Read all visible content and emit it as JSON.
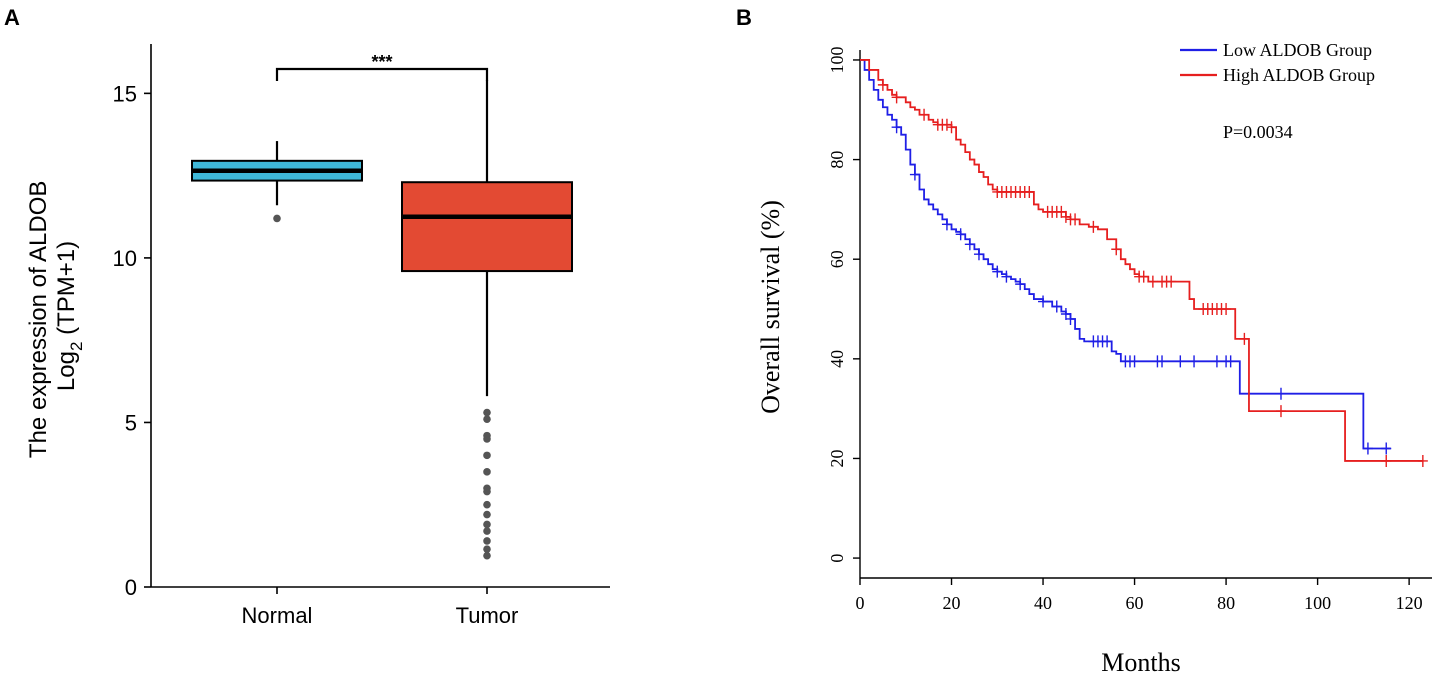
{
  "chart_data": [
    {
      "panel": "A",
      "type": "box",
      "ylabel_line1": "The expression of ALDOB",
      "ylabel_line2_prefix": "Log",
      "ylabel_line2_sub": "2",
      "ylabel_line2_suffix": " (TPM+1)",
      "ylim": [
        0,
        16.5
      ],
      "yticks": [
        0,
        5,
        10,
        15
      ],
      "categories": [
        "Normal",
        "Tumor"
      ],
      "significance": "***",
      "boxes": [
        {
          "name": "Normal",
          "color": "#3fb8d8",
          "whisker_low": 11.6,
          "q1": 12.35,
          "median": 12.65,
          "q3": 12.95,
          "whisker_high": 13.55,
          "outliers": [
            11.2
          ]
        },
        {
          "name": "Tumor",
          "color": "#e34a33",
          "whisker_low": 5.8,
          "q1": 9.6,
          "median": 11.25,
          "q3": 12.3,
          "whisker_high": 15.4,
          "outliers": [
            5.3,
            5.1,
            4.6,
            4.5,
            4.0,
            3.5,
            3.0,
            2.9,
            2.5,
            2.2,
            1.9,
            1.7,
            1.4,
            1.15,
            0.95
          ]
        }
      ]
    },
    {
      "panel": "B",
      "type": "line",
      "subtype": "kaplan-meier",
      "xlabel": "Months",
      "ylabel": "Overall survival (%)",
      "xlim": [
        0,
        125
      ],
      "ylim": [
        -4,
        102
      ],
      "xticks": [
        0,
        20,
        40,
        60,
        80,
        100,
        120
      ],
      "yticks": [
        0,
        20,
        40,
        60,
        80,
        100
      ],
      "legend_position": "top-right",
      "pvalue": "P=0.0034",
      "series": [
        {
          "name": "Low ALDOB Group",
          "color": "#1f1fe6",
          "steps": [
            [
              0,
              100
            ],
            [
              1,
              98
            ],
            [
              2,
              96
            ],
            [
              3,
              94
            ],
            [
              4,
              92
            ],
            [
              5,
              90.5
            ],
            [
              6,
              89
            ],
            [
              7,
              88
            ],
            [
              8,
              86.5
            ],
            [
              9,
              85
            ],
            [
              10,
              82
            ],
            [
              11,
              79
            ],
            [
              12,
              77
            ],
            [
              13,
              74
            ],
            [
              14,
              72
            ],
            [
              15,
              71
            ],
            [
              16,
              70
            ],
            [
              17,
              69
            ],
            [
              18,
              68
            ],
            [
              19,
              67
            ],
            [
              20,
              66
            ],
            [
              21,
              65.5
            ],
            [
              22,
              65
            ],
            [
              23,
              64
            ],
            [
              24,
              63
            ],
            [
              25,
              62
            ],
            [
              26,
              61
            ],
            [
              27,
              60
            ],
            [
              28,
              59
            ],
            [
              29,
              58
            ],
            [
              30,
              57.5
            ],
            [
              31,
              57
            ],
            [
              32,
              56.5
            ],
            [
              33,
              56
            ],
            [
              34,
              55.5
            ],
            [
              35,
              55
            ],
            [
              36,
              54
            ],
            [
              37,
              53
            ],
            [
              38,
              52
            ],
            [
              40,
              51.5
            ],
            [
              42,
              50.5
            ],
            [
              44,
              49.5
            ],
            [
              45,
              49
            ],
            [
              46,
              48
            ],
            [
              47,
              46
            ],
            [
              48,
              44
            ],
            [
              49,
              43.5
            ],
            [
              55,
              41.5
            ],
            [
              56,
              41
            ],
            [
              57,
              39.5
            ],
            [
              82,
              39.5
            ],
            [
              83,
              33
            ],
            [
              109,
              33
            ],
            [
              110,
              22
            ],
            [
              116,
              22
            ]
          ],
          "censor_x": [
            8,
            12,
            19,
            22,
            24,
            26,
            30,
            32,
            35,
            40,
            43,
            45,
            46,
            51,
            52,
            53,
            54,
            58,
            59,
            60,
            65,
            66,
            70,
            73,
            78,
            80,
            81,
            92,
            111,
            115
          ]
        },
        {
          "name": "High ALDOB Group",
          "color": "#e61f1f",
          "steps": [
            [
              0,
              100
            ],
            [
              2,
              98
            ],
            [
              4,
              96
            ],
            [
              5,
              95
            ],
            [
              6,
              94
            ],
            [
              7,
              93
            ],
            [
              8,
              92.5
            ],
            [
              10,
              91.5
            ],
            [
              11,
              90.5
            ],
            [
              12,
              90
            ],
            [
              13,
              89
            ],
            [
              15,
              88
            ],
            [
              16,
              87.5
            ],
            [
              17,
              87
            ],
            [
              20,
              86.5
            ],
            [
              21,
              84
            ],
            [
              22,
              83
            ],
            [
              23,
              81.5
            ],
            [
              24,
              80
            ],
            [
              25,
              79
            ],
            [
              26,
              77.5
            ],
            [
              27,
              76.5
            ],
            [
              28,
              75
            ],
            [
              29,
              74
            ],
            [
              30,
              73.5
            ],
            [
              37,
              73.5
            ],
            [
              38,
              71
            ],
            [
              39,
              70
            ],
            [
              40,
              69.5
            ],
            [
              45,
              68.5
            ],
            [
              46,
              68
            ],
            [
              48,
              67
            ],
            [
              50,
              66.5
            ],
            [
              52,
              66
            ],
            [
              54,
              64
            ],
            [
              56,
              62
            ],
            [
              57,
              60
            ],
            [
              58,
              59
            ],
            [
              59,
              58
            ],
            [
              60,
              57
            ],
            [
              61,
              56.5
            ],
            [
              63,
              55.5
            ],
            [
              71,
              55.5
            ],
            [
              72,
              52
            ],
            [
              73,
              50
            ],
            [
              81,
              50
            ],
            [
              82,
              44
            ],
            [
              84,
              44
            ],
            [
              85,
              29.5
            ],
            [
              105,
              29.5
            ],
            [
              106,
              19.5
            ],
            [
              123,
              19.5
            ]
          ],
          "censor_x": [
            5,
            8,
            14,
            17,
            18,
            19,
            20,
            30,
            31,
            32,
            33,
            34,
            35,
            36,
            37,
            41,
            42,
            43,
            44,
            45,
            46,
            47,
            51,
            56,
            61,
            62,
            64,
            66,
            67,
            68,
            75,
            76,
            77,
            78,
            79,
            80,
            84,
            92,
            115,
            123
          ]
        }
      ]
    }
  ]
}
